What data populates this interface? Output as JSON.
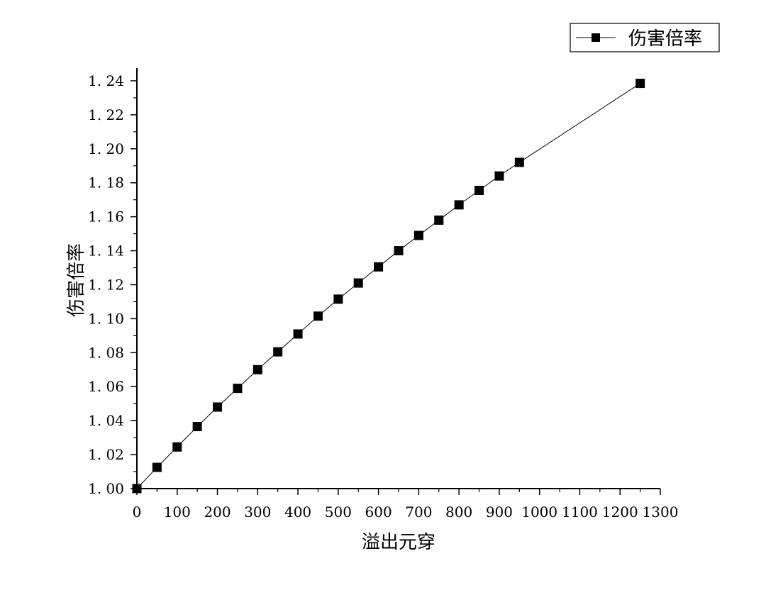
{
  "chart_data": {
    "type": "line",
    "xlabel": "溢出元穿",
    "ylabel": "伤害倍率",
    "xlim": [
      0,
      1300
    ],
    "ylim": [
      1.0,
      1.25
    ],
    "x_ticks": [
      0,
      100,
      200,
      300,
      400,
      500,
      600,
      700,
      800,
      900,
      1000,
      1100,
      1200,
      1300
    ],
    "x_tick_labels": [
      "0",
      "100",
      "200",
      "300",
      "400",
      "500",
      "600",
      "700",
      "800",
      "900",
      "1000",
      "1100",
      "1200",
      "1300"
    ],
    "y_ticks": [
      1.0,
      1.02,
      1.04,
      1.06,
      1.08,
      1.1,
      1.12,
      1.14,
      1.16,
      1.18,
      1.2,
      1.22,
      1.24
    ],
    "y_tick_labels": [
      "1. 00",
      "1. 02",
      "1. 04",
      "1. 06",
      "1. 08",
      "1. 10",
      "1. 12",
      "1. 14",
      "1. 16",
      "1. 18",
      "1. 20",
      "1. 22",
      "1. 24"
    ],
    "grid": false,
    "legend_position": "top-right",
    "series": [
      {
        "name": "伤害倍率",
        "marker": "square",
        "color": "#000000",
        "x": [
          0,
          50,
          100,
          150,
          200,
          250,
          300,
          350,
          400,
          450,
          500,
          550,
          600,
          650,
          700,
          750,
          800,
          850,
          900,
          950,
          1250
        ],
        "y": [
          1.0,
          1.0125,
          1.0245,
          1.0365,
          1.048,
          1.059,
          1.07,
          1.0805,
          1.091,
          1.1015,
          1.1115,
          1.121,
          1.1305,
          1.14,
          1.149,
          1.158,
          1.167,
          1.1755,
          1.184,
          1.192,
          1.2385
        ]
      }
    ]
  }
}
